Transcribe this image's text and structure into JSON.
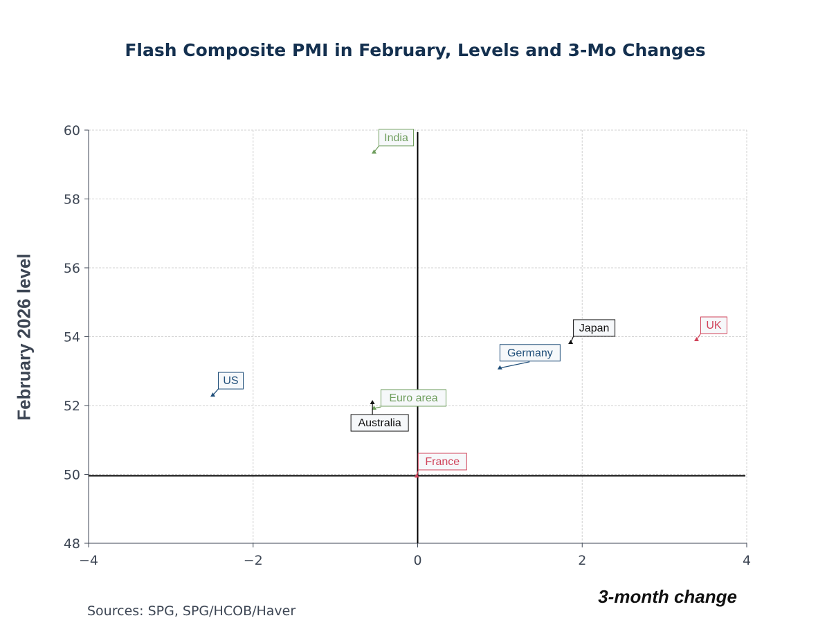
{
  "chart_data": {
    "type": "scatter",
    "title": "Flash Composite PMI in February, Levels and 3-Mo Changes",
    "xlabel": "3-month change",
    "ylabel": "February 2026 level",
    "xlim": [
      -4,
      4
    ],
    "ylim": [
      48,
      60
    ],
    "xticks": [
      -4,
      -2,
      0,
      2,
      4
    ],
    "yticks": [
      48,
      50,
      52,
      54,
      56,
      58,
      60
    ],
    "grid": true,
    "reference_lines": {
      "x": 0,
      "y": 50
    },
    "points": [
      {
        "label": "India",
        "x": -0.53,
        "y": 59.36,
        "color": "#6f9e5e"
      },
      {
        "label": "US",
        "x": -2.49,
        "y": 52.3,
        "color": "#1f4e79"
      },
      {
        "label": "Euro area",
        "x": -0.53,
        "y": 51.92,
        "color": "#6f9e5e"
      },
      {
        "label": "Australia",
        "x": -0.55,
        "y": 52.08,
        "color": "#111111"
      },
      {
        "label": "France",
        "x": -0.01,
        "y": 49.95,
        "color": "#d0435a"
      },
      {
        "label": "Germany",
        "x": 1.0,
        "y": 53.09,
        "color": "#1f4e79"
      },
      {
        "label": "Japan",
        "x": 1.86,
        "y": 53.83,
        "color": "#111111"
      },
      {
        "label": "UK",
        "x": 3.39,
        "y": 53.91,
        "color": "#d0435a"
      }
    ]
  },
  "source": "Sources:  SPG, SPG/HCOB/Haver"
}
